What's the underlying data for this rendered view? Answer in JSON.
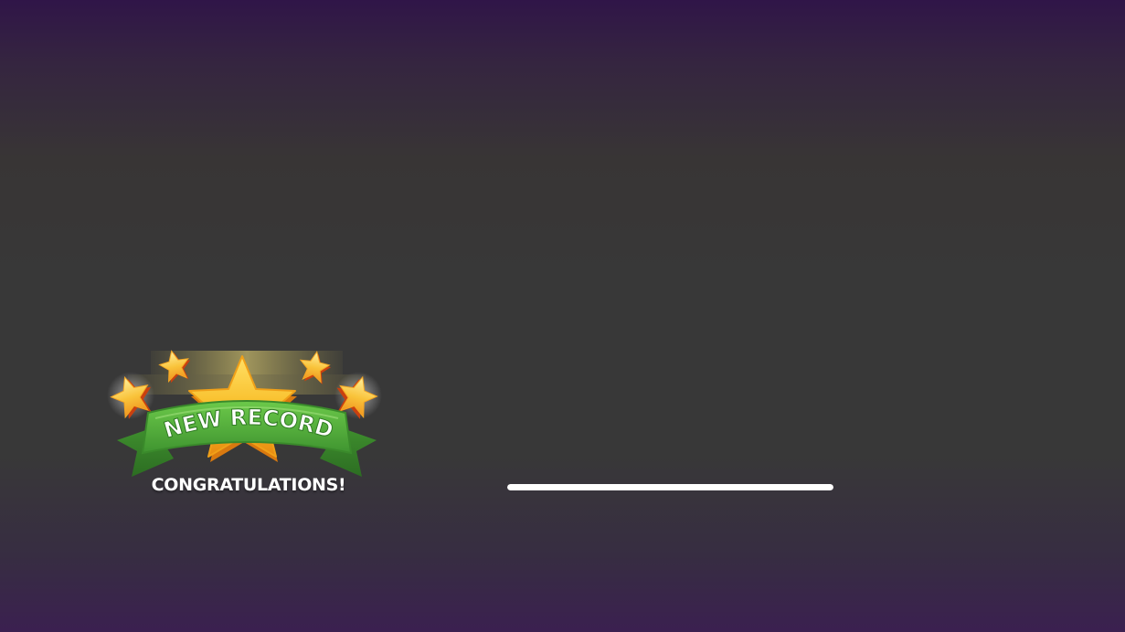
{
  "badge": {
    "ribbon_text": "NEW RECORD",
    "subtitle": "CONGRATULATIONS!",
    "star_icon": "star-icon",
    "ribbon_color": "#4ea63a",
    "star_color": "#f6b51c"
  },
  "progress": {
    "value": 1.0
  },
  "colors": {
    "bg_top": "#301548",
    "bg_mid": "#383838",
    "bg_bottom": "#3b2050",
    "progress_fill": "#ffffff"
  }
}
